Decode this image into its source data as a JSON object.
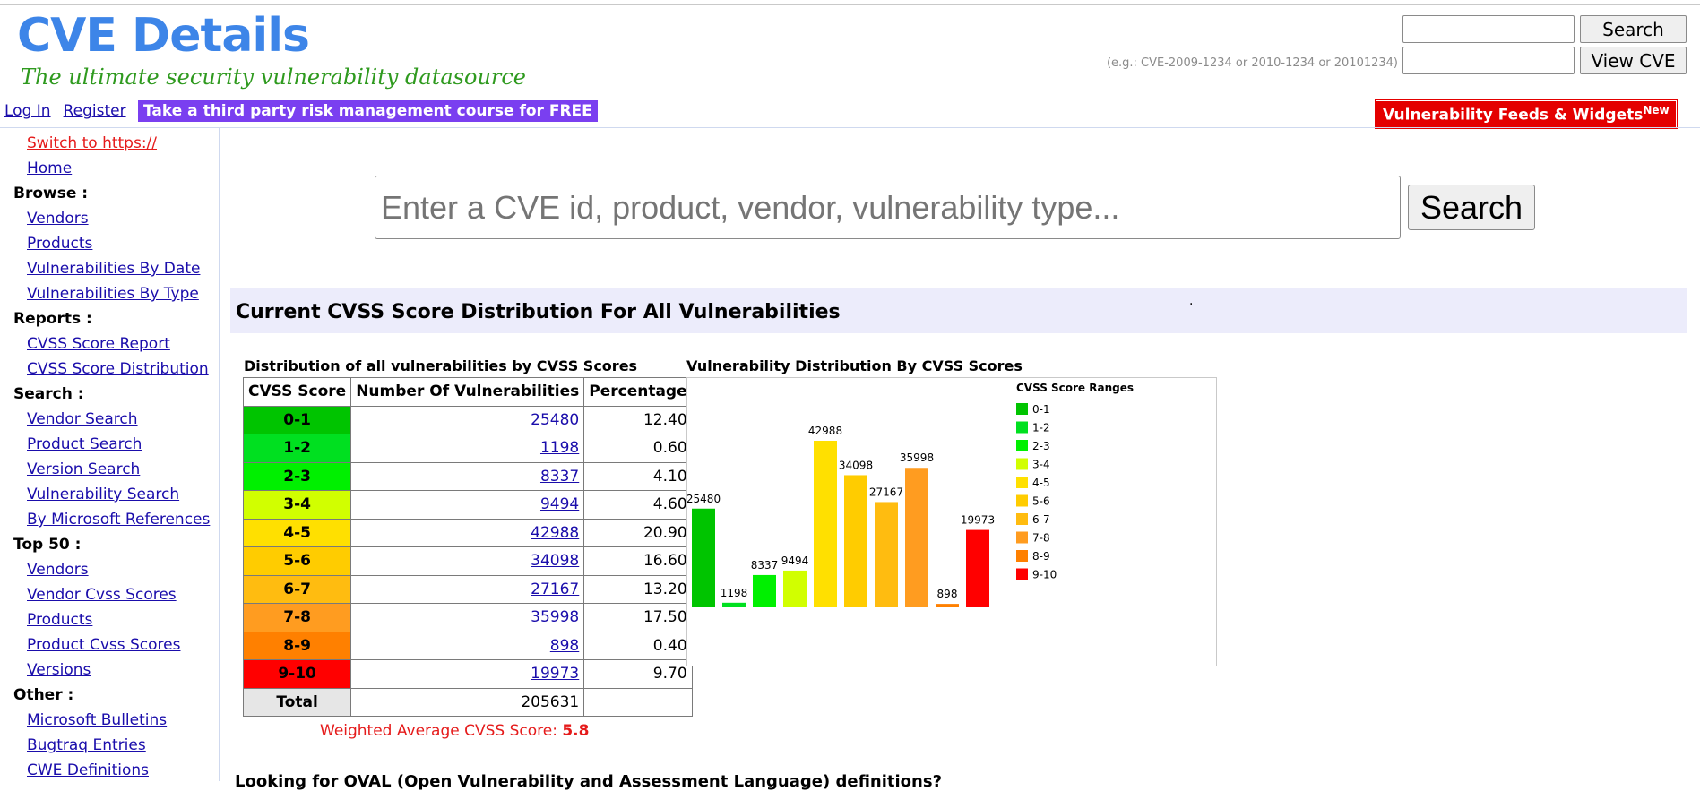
{
  "header": {
    "logo_title": "CVE Details",
    "logo_tagline": "The ultimate security vulnerability datasource",
    "login_label": "Log In",
    "register_label": "Register",
    "promo_label": "Take a third party risk management course for FREE",
    "quick_search_button": "Search",
    "view_cve_button": "View CVE",
    "example_text": "(e.g.: CVE-2009-1234 or 2010-1234 or 20101234)",
    "feeds_label": "Vulnerability Feeds & Widgets",
    "feeds_sup": "New"
  },
  "sidebar": {
    "https_label": "Switch to https://",
    "home_label": "Home",
    "browse_head": "Browse :",
    "browse": [
      "Vendors",
      "Products",
      "Vulnerabilities By Date",
      "Vulnerabilities By Type"
    ],
    "reports_head": "Reports :",
    "reports": [
      "CVSS Score Report",
      "CVSS Score Distribution"
    ],
    "search_head": "Search :",
    "search": [
      "Vendor Search",
      "Product Search",
      "Version Search",
      "Vulnerability Search",
      "By Microsoft References"
    ],
    "top50_head": "Top 50 :",
    "top50": [
      "Vendors",
      "Vendor Cvss Scores",
      "Products",
      "Product Cvss Scores",
      "Versions"
    ],
    "other_head": "Other :",
    "other": [
      "Microsoft Bulletins",
      "Bugtraq Entries",
      "CWE Definitions"
    ]
  },
  "main_search": {
    "placeholder": "Enter a CVE id, product, vendor, vulnerability type...",
    "button_label": "Search"
  },
  "section": {
    "title": "Current CVSS Score Distribution For All Vulnerabilities",
    "dot": "."
  },
  "table": {
    "caption": "Distribution of all vulnerabilities by CVSS Scores",
    "headers": [
      "CVSS Score",
      "Number Of Vulnerabilities",
      "Percentage"
    ],
    "rows": [
      {
        "score": "0-1",
        "count": "25480",
        "pct": "12.40"
      },
      {
        "score": "1-2",
        "count": "1198",
        "pct": "0.60"
      },
      {
        "score": "2-3",
        "count": "8337",
        "pct": "4.10"
      },
      {
        "score": "3-4",
        "count": "9494",
        "pct": "4.60"
      },
      {
        "score": "4-5",
        "count": "42988",
        "pct": "20.90"
      },
      {
        "score": "5-6",
        "count": "34098",
        "pct": "16.60"
      },
      {
        "score": "6-7",
        "count": "27167",
        "pct": "13.20"
      },
      {
        "score": "7-8",
        "count": "35998",
        "pct": "17.50"
      },
      {
        "score": "8-9",
        "count": "898",
        "pct": "0.40"
      },
      {
        "score": "9-10",
        "count": "19973",
        "pct": "9.70"
      }
    ],
    "total_label": "Total",
    "total_value": "205631",
    "weighted_label": "Weighted Average CVSS Score:",
    "weighted_value": "5.8"
  },
  "colors": {
    "0-1": "#00c400",
    "1-2": "#00e020",
    "2-3": "#00f000",
    "3-4": "#d1ff00",
    "4-5": "#ffe000",
    "5-6": "#ffcc00",
    "6-7": "#ffbc10",
    "7-8": "#ff9c20",
    "8-9": "#ff8000",
    "9-10": "#ff0000"
  },
  "chart_data": {
    "type": "bar",
    "title": "Vulnerability Distribution By CVSS Scores",
    "legend_title": "CVSS Score Ranges",
    "legend_position": "right",
    "categories": [
      "0-1",
      "1-2",
      "2-3",
      "3-4",
      "4-5",
      "5-6",
      "6-7",
      "7-8",
      "8-9",
      "9-10"
    ],
    "values": [
      25480,
      1198,
      8337,
      9494,
      42988,
      34098,
      27167,
      35998,
      898,
      19973
    ],
    "ylim": [
      0,
      42988
    ],
    "grid": false
  },
  "bottom": {
    "text": "Looking for OVAL (Open Vulnerability and Assessment Language) definitions?"
  }
}
